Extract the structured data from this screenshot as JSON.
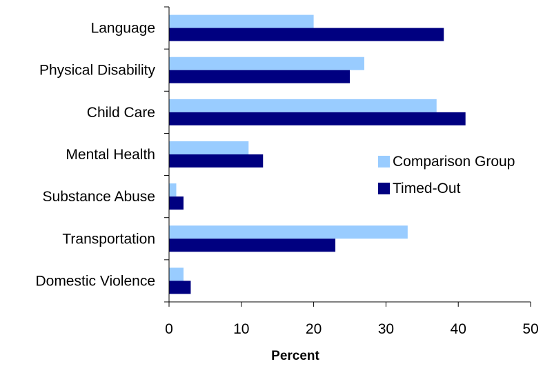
{
  "chart_data": {
    "type": "bar",
    "orientation": "horizontal",
    "categories": [
      "Language",
      "Physical Disability",
      "Child Care",
      "Mental Health",
      "Substance Abuse",
      "Transportation",
      "Domestic Violence"
    ],
    "series": [
      {
        "name": "Comparison Group",
        "color": "#99CCFF",
        "values": [
          20,
          27,
          37,
          11,
          1,
          33,
          2
        ]
      },
      {
        "name": "Timed-Out",
        "color": "#000080",
        "values": [
          38,
          25,
          41,
          13,
          2,
          23,
          3
        ]
      }
    ],
    "xlabel": "Percent",
    "xlim": [
      0,
      50
    ],
    "xticks": [
      0,
      10,
      20,
      30,
      40,
      50
    ],
    "grid": false,
    "legend_position": "right"
  }
}
